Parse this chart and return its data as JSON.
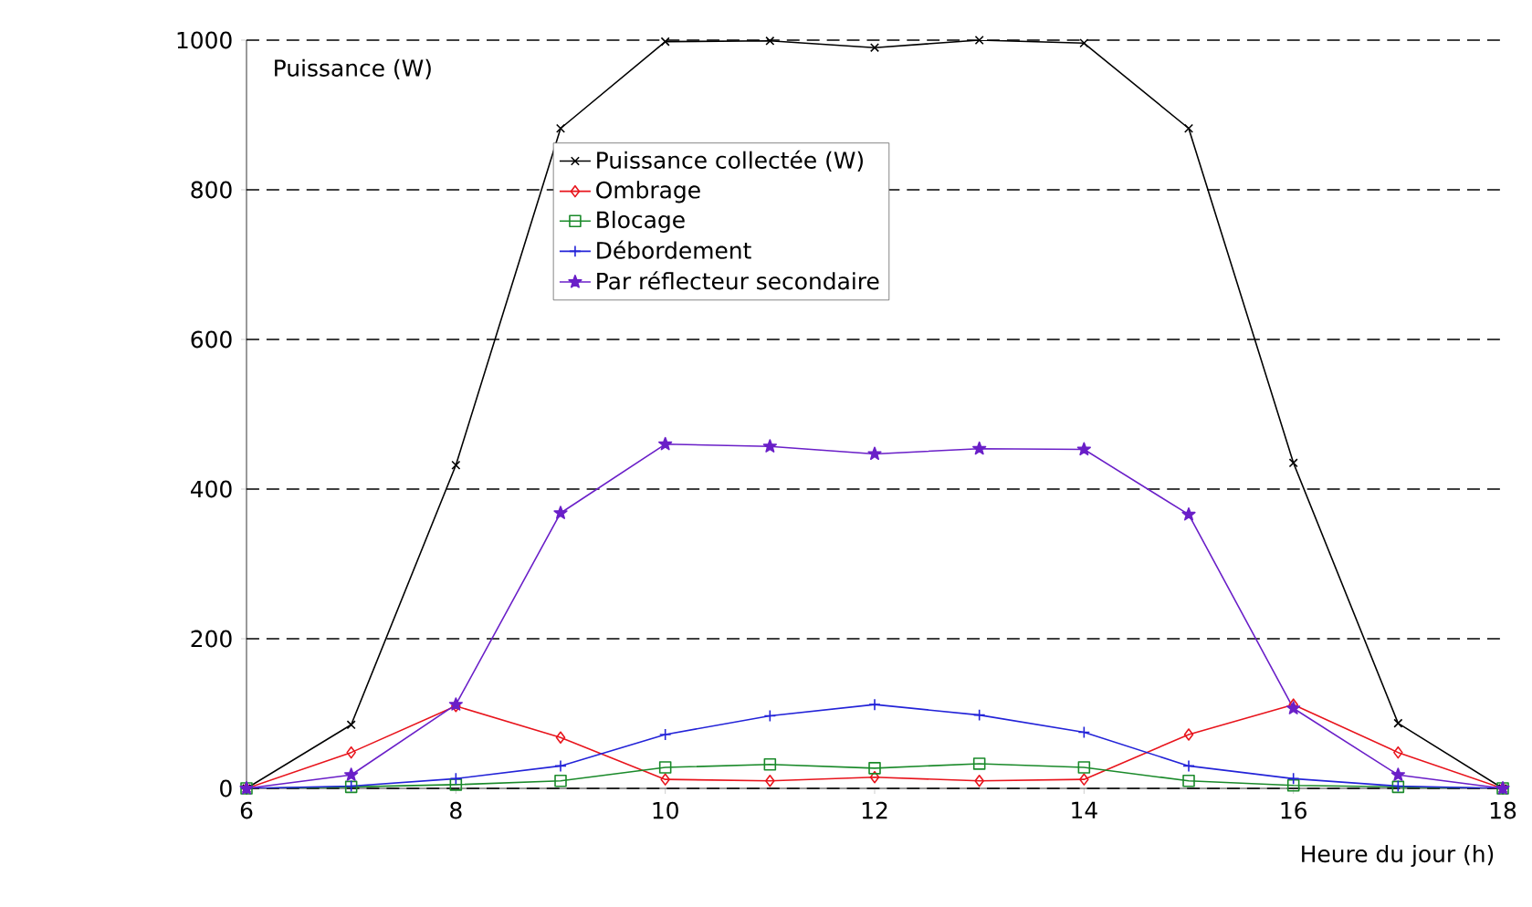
{
  "chart_data": {
    "type": "line",
    "xlabel": "Heure du jour (h)",
    "ylabel": "Puissance (W)",
    "x": [
      6,
      7,
      8,
      9,
      10,
      11,
      12,
      13,
      14,
      15,
      16,
      17,
      18
    ],
    "series": [
      {
        "name": "Puissance collectée (W)",
        "color": "#000000",
        "marker": "cross",
        "values": [
          0,
          85,
          432,
          882,
          998,
          999,
          990,
          1000,
          996,
          882,
          435,
          87,
          0
        ]
      },
      {
        "name": "Ombrage",
        "color": "#e8141c",
        "marker": "diamond",
        "values": [
          0,
          48,
          110,
          68,
          12,
          10,
          15,
          10,
          12,
          72,
          112,
          48,
          0
        ]
      },
      {
        "name": "Blocage",
        "color": "#1a8a2a",
        "marker": "square",
        "values": [
          0,
          2,
          5,
          10,
          28,
          32,
          27,
          33,
          28,
          10,
          4,
          2,
          0
        ]
      },
      {
        "name": "Débordement",
        "color": "#2323d8",
        "marker": "plus",
        "values": [
          0,
          3,
          13,
          30,
          72,
          97,
          112,
          98,
          75,
          30,
          13,
          3,
          0
        ]
      },
      {
        "name": "Par réflecteur secondaire",
        "color": "#6a1fc8",
        "marker": "star",
        "values": [
          0,
          18,
          112,
          368,
          460,
          457,
          447,
          454,
          453,
          366,
          107,
          18,
          0
        ]
      }
    ],
    "xlim": [
      6,
      18
    ],
    "ylim": [
      0,
      1000
    ],
    "xticks": [
      6,
      8,
      10,
      12,
      14,
      16,
      18
    ],
    "yticks": [
      0,
      200,
      400,
      600,
      800,
      1000
    ],
    "grid": "y",
    "legend": "top",
    "line_style": "solid"
  }
}
